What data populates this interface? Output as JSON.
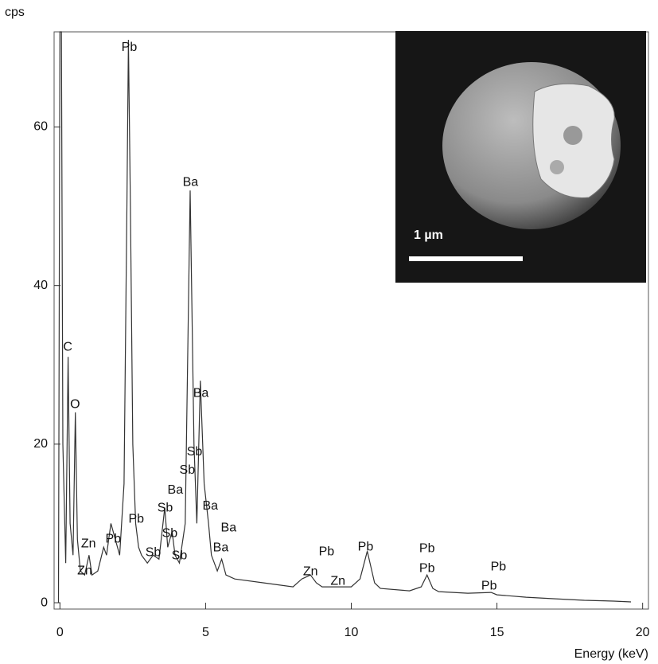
{
  "chart_data": {
    "type": "line",
    "y_label": "cps",
    "x_label": "Energy (keV)",
    "x": [
      -0.05,
      0.0,
      0.05,
      0.1,
      0.2,
      0.28,
      0.35,
      0.45,
      0.53,
      0.6,
      0.7,
      0.85,
      1.0,
      1.1,
      1.3,
      1.5,
      1.6,
      1.75,
      1.9,
      2.05,
      2.2,
      2.3,
      2.35,
      2.42,
      2.5,
      2.6,
      2.7,
      2.8,
      3.0,
      3.2,
      3.4,
      3.6,
      3.7,
      3.85,
      3.95,
      4.1,
      4.3,
      4.47,
      4.6,
      4.7,
      4.82,
      4.95,
      5.1,
      5.2,
      5.4,
      5.55,
      5.7,
      6.0,
      7.0,
      8.0,
      8.3,
      8.6,
      8.8,
      9.0,
      9.5,
      10.0,
      10.3,
      10.55,
      10.8,
      11.0,
      12.0,
      12.4,
      12.6,
      12.8,
      13.0,
      14.0,
      14.8,
      15.0,
      16.0,
      17.0,
      18.0,
      19.0,
      19.6
    ],
    "values": [
      0,
      72,
      72,
      20,
      5,
      31,
      10,
      6,
      24,
      8,
      4,
      3.5,
      6,
      3.5,
      4,
      7,
      6,
      10,
      8,
      6,
      15,
      50,
      71,
      50,
      20,
      10,
      7,
      6,
      5,
      6,
      5.5,
      12,
      7,
      9,
      6,
      5,
      10,
      52,
      20,
      10,
      28,
      15,
      10,
      6,
      4,
      5.5,
      3.5,
      3,
      2.5,
      2,
      3,
      3.5,
      2.5,
      2,
      2,
      2,
      3,
      6.5,
      2.5,
      1.8,
      1.5,
      2,
      3.5,
      1.8,
      1.4,
      1.2,
      1.3,
      1,
      0.7,
      0.5,
      0.3,
      0.2,
      0.1
    ],
    "color": "#333333",
    "xlim": [
      -0.2,
      20.2
    ],
    "xticks": [
      0,
      5,
      10,
      15,
      20
    ],
    "ylim": [
      -0.8,
      72
    ],
    "yticks": [
      0,
      20,
      40,
      60
    ],
    "annotations": [
      {
        "text": "Pb",
        "x": 2.38,
        "y": 70
      },
      {
        "text": "Ba",
        "x": 4.48,
        "y": 53
      },
      {
        "text": "C",
        "x": 0.27,
        "y": 32.2
      },
      {
        "text": "O",
        "x": 0.52,
        "y": 25
      },
      {
        "text": "Ba",
        "x": 4.84,
        "y": 26.4
      },
      {
        "text": "Sb",
        "x": 4.62,
        "y": 19
      },
      {
        "text": "Sb",
        "x": 4.37,
        "y": 16.7
      },
      {
        "text": "Ba",
        "x": 3.96,
        "y": 14.2
      },
      {
        "text": "Sb",
        "x": 3.61,
        "y": 11.9
      },
      {
        "text": "Ba",
        "x": 5.16,
        "y": 12.2
      },
      {
        "text": "Ba",
        "x": 5.79,
        "y": 9.4
      },
      {
        "text": "Ba",
        "x": 5.52,
        "y": 6.9
      },
      {
        "text": "Sb",
        "x": 3.77,
        "y": 8.7
      },
      {
        "text": "Pb",
        "x": 2.62,
        "y": 10.5
      },
      {
        "text": "Pb",
        "x": 1.83,
        "y": 8
      },
      {
        "text": "Zn",
        "x": 0.98,
        "y": 7.4
      },
      {
        "text": "Zn",
        "x": 0.85,
        "y": 4
      },
      {
        "text": "Sb",
        "x": 3.2,
        "y": 6.3
      },
      {
        "text": "Sb",
        "x": 4.1,
        "y": 5.9
      },
      {
        "text": "Pb",
        "x": 9.15,
        "y": 6.4
      },
      {
        "text": "Zn",
        "x": 8.6,
        "y": 3.9
      },
      {
        "text": "Zn",
        "x": 9.54,
        "y": 2.7
      },
      {
        "text": "Pb",
        "x": 10.49,
        "y": 7
      },
      {
        "text": "Pb",
        "x": 12.6,
        "y": 6.8
      },
      {
        "text": "Pb",
        "x": 12.6,
        "y": 4.3
      },
      {
        "text": "Pb",
        "x": 15.05,
        "y": 4.5
      },
      {
        "text": "Pb",
        "x": 14.73,
        "y": 2.1
      }
    ],
    "inset_scale_label": "1 µm"
  }
}
